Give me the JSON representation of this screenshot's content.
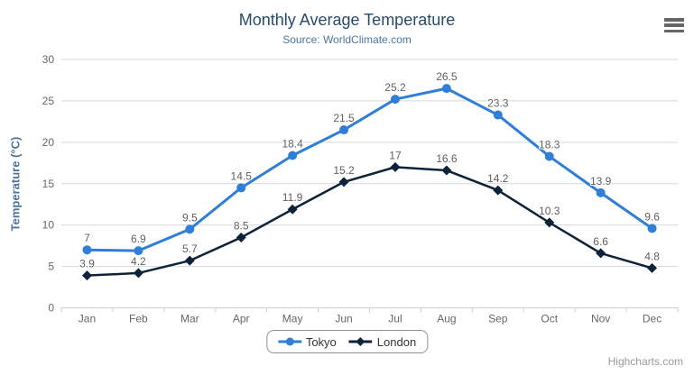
{
  "header": {
    "title": "Monthly Average Temperature",
    "subtitle": "Source: WorldClimate.com"
  },
  "credits": {
    "text": "Highcharts.com"
  },
  "context_menu": {
    "icon": "hamburger-menu"
  },
  "colors": {
    "title": "#274b6d",
    "subtitle": "#4d759e",
    "axis_title": "#4d759e",
    "tick_label": "#666666",
    "data_label": "#606060",
    "grid": "#d8d8d8",
    "axis_line": "#c0d0e0",
    "legend_border": "#909090",
    "tokyo": "#2f7ed8",
    "london": "#0d233a"
  },
  "chart_data": {
    "type": "line",
    "title": "Monthly Average Temperature",
    "subtitle": "Source: WorldClimate.com",
    "categories": [
      "Jan",
      "Feb",
      "Mar",
      "Apr",
      "May",
      "Jun",
      "Jul",
      "Aug",
      "Sep",
      "Oct",
      "Nov",
      "Dec"
    ],
    "series": [
      {
        "name": "Tokyo",
        "color": "#2f7ed8",
        "marker": "circle",
        "line_width": 3,
        "values": [
          7,
          6.9,
          9.5,
          14.5,
          18.4,
          21.5,
          25.2,
          26.5,
          23.3,
          18.3,
          13.9,
          9.6
        ]
      },
      {
        "name": "London",
        "color": "#0d233a",
        "marker": "diamond",
        "line_width": 2.5,
        "values": [
          3.9,
          4.2,
          5.7,
          8.5,
          11.9,
          15.2,
          17,
          16.6,
          14.2,
          10.3,
          6.6,
          4.8
        ]
      }
    ],
    "xlabel": "",
    "ylabel": "Temperature (°C)",
    "ylim": [
      0,
      30
    ],
    "yticks": [
      0,
      5,
      10,
      15,
      20,
      25,
      30
    ],
    "grid": true,
    "data_labels": true,
    "legend_position": "bottom-center"
  }
}
